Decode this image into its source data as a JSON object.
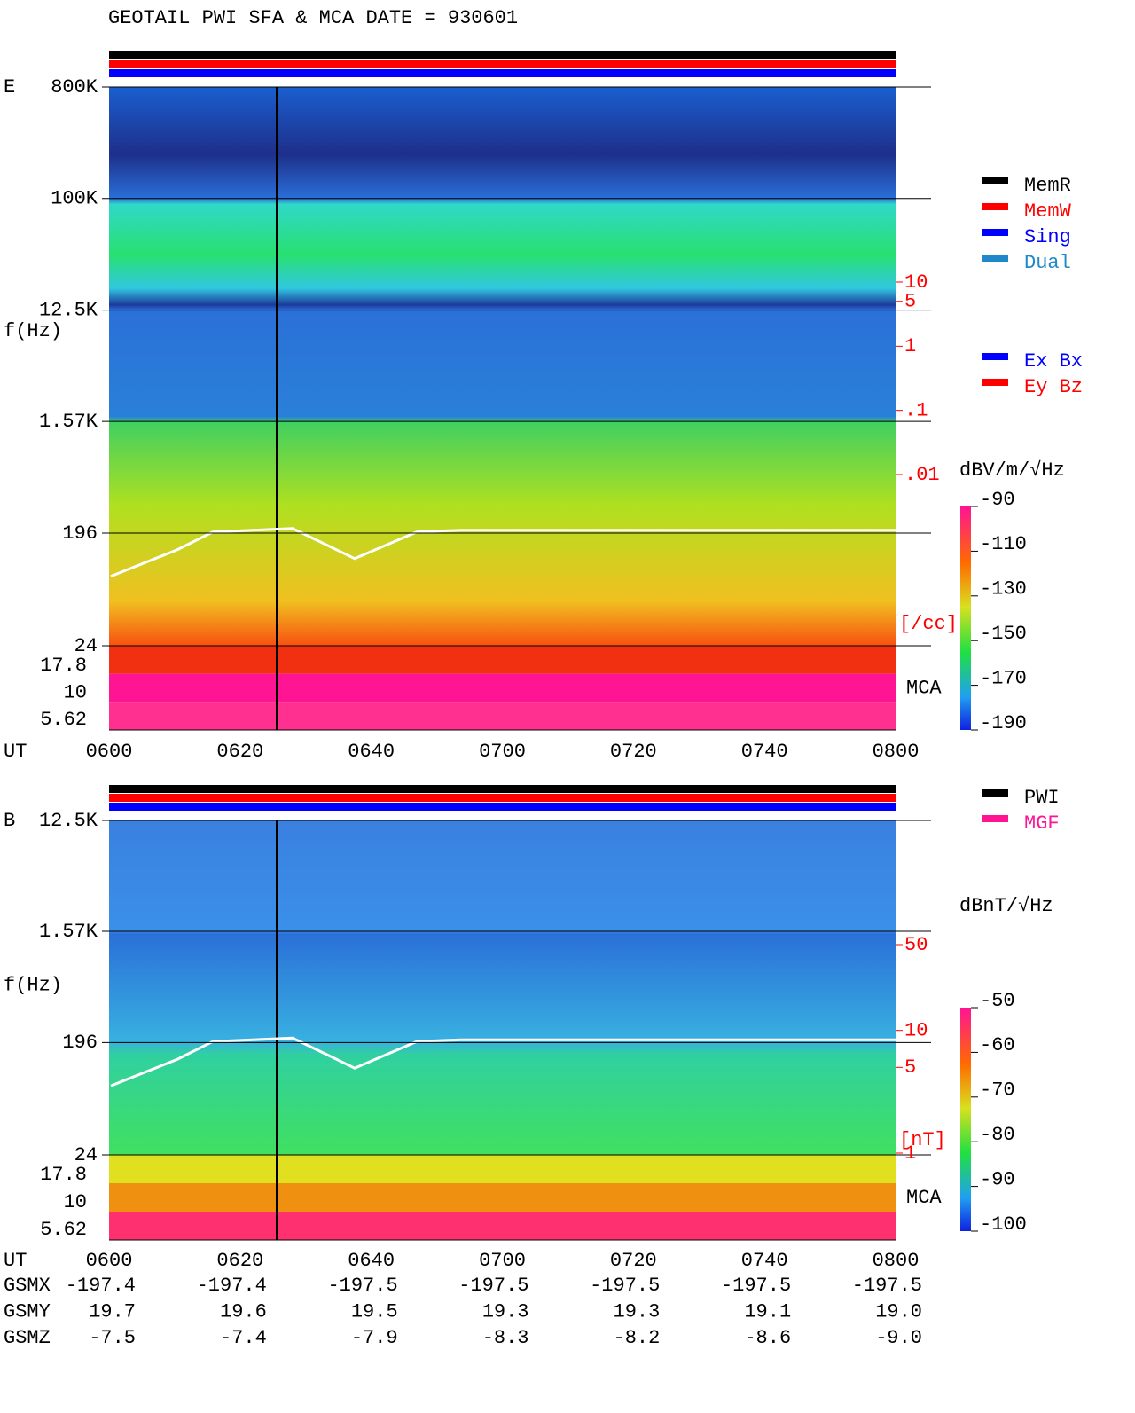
{
  "title": "GEOTAIL  PWI SFA & MCA   DATE = 930601",
  "chart_data": [
    {
      "type": "spectrogram",
      "panel": "E",
      "ylabel": "f(Hz)",
      "xlabel": "UT",
      "log_y": true,
      "ylim": [
        24,
        800000
      ],
      "yticks": [
        {
          "value": 800000,
          "label": "800K"
        },
        {
          "value": 100000,
          "label": "100K"
        },
        {
          "value": 12500,
          "label": "12.5K"
        },
        {
          "value": 1570,
          "label": "1.57K"
        },
        196,
        24
      ],
      "x": [
        "0600",
        "0620",
        "0640",
        "0700",
        "0720",
        "0740",
        "0800"
      ],
      "mca_label": "MCA",
      "mca_channels": [
        17.8,
        10,
        5.62
      ],
      "density_unit": "[/cc]",
      "density_lim": [
        0.01,
        10
      ],
      "density_ticks": [
        10,
        5,
        1,
        {
          "value": 0.1,
          "label": ".1"
        },
        {
          "value": 0.01,
          "label": ".01"
        }
      ],
      "colorbar_label": "dBV/m/√Hz",
      "colorbar_lim": [
        -190,
        -90
      ],
      "colorbar_ticks": [
        -90,
        -110,
        -130,
        -150,
        -170,
        -190
      ],
      "legend": [
        {
          "name": "MemR",
          "color": "#000000"
        },
        {
          "name": "MemW",
          "color": "#ff0000"
        },
        {
          "name": "Sing",
          "color": "#0000ff"
        },
        {
          "name": "Dual",
          "color": "#1e88c8"
        }
      ],
      "legend2": [
        {
          "name": "Ex Bx",
          "color": "#0000ff"
        },
        {
          "name": "Ey Bz",
          "color": "#ff0000"
        }
      ]
    },
    {
      "type": "spectrogram",
      "panel": "B",
      "ylabel": "f(Hz)",
      "xlabel": "UT",
      "log_y": true,
      "ylim": [
        24,
        12500
      ],
      "yticks": [
        {
          "value": 12500,
          "label": "12.5K"
        },
        {
          "value": 1570,
          "label": "1.57K"
        },
        196,
        24
      ],
      "x": [
        "0600",
        "0620",
        "0640",
        "0700",
        "0720",
        "0740",
        "0800"
      ],
      "mca_label": "MCA",
      "mca_channels": [
        17.8,
        10,
        5.62
      ],
      "density_unit": "[nT]",
      "density_lim": [
        1,
        50
      ],
      "density_ticks": [
        50,
        10,
        5,
        1
      ],
      "colorbar_label": "dBnT/√Hz",
      "colorbar_lim": [
        -100,
        -50
      ],
      "colorbar_ticks": [
        -50,
        -60,
        -70,
        -80,
        -90,
        -100
      ],
      "legend": [
        {
          "name": "PWI",
          "color": "#000000"
        },
        {
          "name": "MGF",
          "color": "#ff1493"
        }
      ]
    }
  ],
  "orbit": {
    "rows": [
      {
        "name": "GSMX",
        "values": [
          "-197.4",
          "-197.4",
          "-197.5",
          "-197.5",
          "-197.5",
          "-197.5",
          "-197.5"
        ]
      },
      {
        "name": "GSMY",
        "values": [
          "19.7",
          "19.6",
          "19.5",
          "19.3",
          "19.3",
          "19.1",
          "19.0"
        ]
      },
      {
        "name": "GSMZ",
        "values": [
          "-7.5",
          "-7.4",
          "-7.9",
          "-8.3",
          "-8.2",
          "-8.6",
          "-9.0"
        ]
      }
    ]
  }
}
